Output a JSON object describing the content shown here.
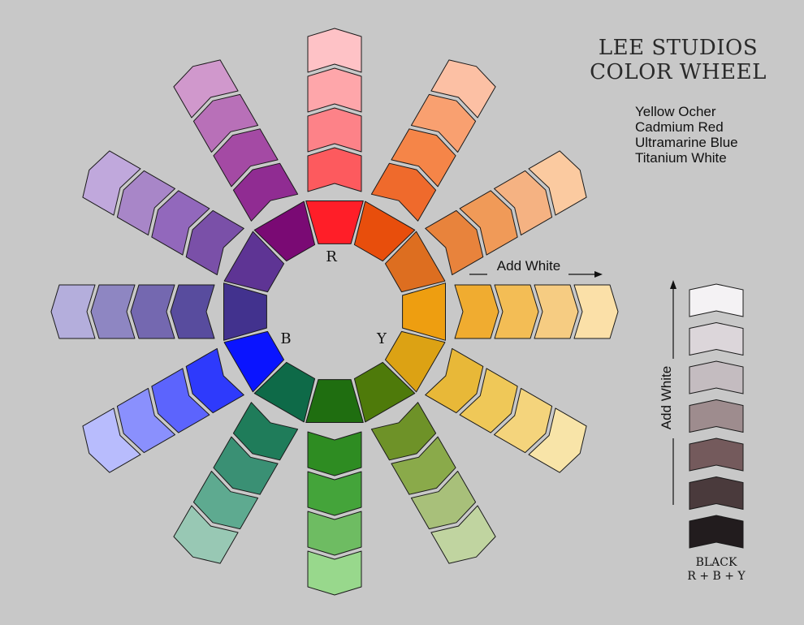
{
  "title": {
    "line1": "LEE STUDIOS",
    "line2": "COLOR WHEEL"
  },
  "paints": [
    "Yellow Ocher",
    "Cadmium Red",
    "Ultramarine Blue",
    "Titanium White"
  ],
  "wheel_labels": {
    "r": "R",
    "y": "Y",
    "b": "B"
  },
  "arrow_labels": {
    "horizontal": "Add White",
    "vertical": "Add White"
  },
  "legend": {
    "line1": "BLACK",
    "line2": "R + B + Y"
  },
  "background": "#c8c8c8",
  "spokes": [
    {
      "name": "red",
      "colors": [
        "#ff1e28",
        "#fd5a5e",
        "#fd8288",
        "#fea6aa",
        "#fec2c6"
      ]
    },
    {
      "name": "red-orange",
      "colors": [
        "#e84e0c",
        "#ef6a2c",
        "#f58548",
        "#f9a070",
        "#fcc0a4"
      ]
    },
    {
      "name": "orange",
      "colors": [
        "#dd6e20",
        "#e8833c",
        "#f09a58",
        "#f5b282",
        "#fbcaa0"
      ]
    },
    {
      "name": "yellow-orange",
      "colors": [
        "#ee9e10",
        "#f0ac30",
        "#f3bd55",
        "#f6cc82",
        "#fbe0a8"
      ]
    },
    {
      "name": "yellow",
      "colors": [
        "#dca214",
        "#e8b838",
        "#efc858",
        "#f4d47c",
        "#f8e4a8"
      ]
    },
    {
      "name": "yellow-green",
      "colors": [
        "#4e7a0a",
        "#6e9228",
        "#8aaa4a",
        "#a8c07a",
        "#c0d4a0"
      ]
    },
    {
      "name": "green",
      "colors": [
        "#1f6e10",
        "#2e8c22",
        "#44a43a",
        "#6ebc62",
        "#98d88c"
      ]
    },
    {
      "name": "blue-green",
      "colors": [
        "#0e6a48",
        "#1f7c5a",
        "#3a9074",
        "#5eaa90",
        "#98c8b4"
      ]
    },
    {
      "name": "blue",
      "colors": [
        "#0a14ff",
        "#2e3afc",
        "#5c64fd",
        "#8a90fd",
        "#b8bcfd"
      ]
    },
    {
      "name": "blue-violet",
      "colors": [
        "#42328e",
        "#584c9e",
        "#7468b0",
        "#8e86c2",
        "#b4aedc"
      ]
    },
    {
      "name": "violet",
      "colors": [
        "#5e3494",
        "#7a50a8",
        "#9268bc",
        "#a886c8",
        "#c0a8dc"
      ]
    },
    {
      "name": "red-violet",
      "colors": [
        "#7a0a74",
        "#902c92",
        "#a44aa4",
        "#b870b8",
        "#d098cc"
      ]
    }
  ],
  "tint_scale": {
    "label": "Add White",
    "colors": [
      "#f4f2f4",
      "#dcd6da",
      "#c4bcc0",
      "#9e8c8e",
      "#745a5c",
      "#4a3a3c",
      "#221c1e"
    ]
  }
}
